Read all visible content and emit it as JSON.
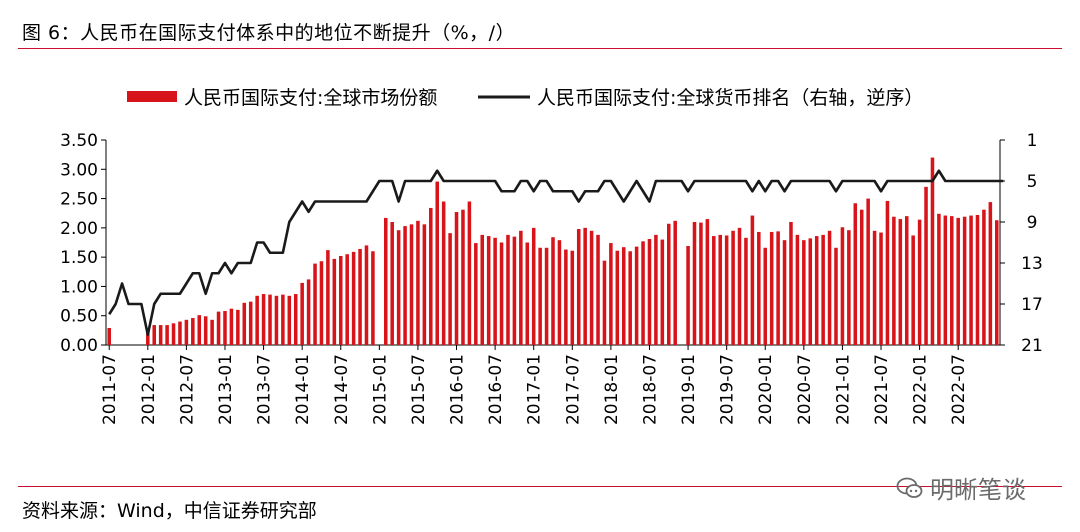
{
  "figure_title": "图 6：人民币在国际支付体系中的地位不断提升（%，/）",
  "source": "资料来源：Wind，中信证券研究部",
  "watermark": "明晰笔谈",
  "colors": {
    "bar": "#d7141a",
    "line": "#1a1a1a",
    "rule": "#c8102e"
  },
  "chart_data": {
    "type": "bar+line",
    "title": "",
    "legend_position": "top-center",
    "x_tick_labels": [
      "2011-07",
      "2012-01",
      "2012-07",
      "2013-01",
      "2013-07",
      "2014-01",
      "2014-07",
      "2015-01",
      "2015-07",
      "2016-01",
      "2016-07",
      "2017-01",
      "2017-07",
      "2018-01",
      "2018-07",
      "2019-01",
      "2019-07",
      "2020-01",
      "2020-07",
      "2021-01",
      "2021-07",
      "2022-01",
      "2022-07"
    ],
    "y_left": {
      "lim": [
        0,
        3.5
      ],
      "ticks": [
        "0.00",
        "0.50",
        "1.00",
        "1.50",
        "2.00",
        "2.50",
        "3.00",
        "3.50"
      ]
    },
    "y_right": {
      "lim": [
        1,
        21
      ],
      "reversed": true,
      "ticks": [
        "1",
        "5",
        "9",
        "13",
        "17",
        "21"
      ]
    },
    "series": [
      {
        "name": "人民币国际支付:全球市场份额",
        "type": "bar",
        "axis": "left",
        "start": "2011-07",
        "values": [
          0.29,
          null,
          null,
          null,
          null,
          null,
          0.28,
          0.34,
          0.34,
          0.34,
          0.37,
          0.4,
          0.43,
          0.46,
          0.51,
          0.49,
          0.43,
          0.57,
          0.58,
          0.62,
          0.6,
          0.72,
          0.74,
          0.84,
          0.87,
          0.86,
          0.84,
          0.86,
          0.84,
          0.87,
          1.06,
          1.12,
          1.39,
          1.43,
          1.62,
          1.47,
          1.52,
          1.55,
          1.59,
          1.64,
          1.7,
          1.6,
          null,
          2.17,
          2.1,
          1.96,
          2.03,
          2.06,
          2.12,
          2.06,
          2.34,
          2.79,
          2.45,
          1.91,
          2.27,
          2.31,
          2.45,
          1.74,
          1.88,
          1.86,
          1.83,
          1.75,
          1.88,
          1.85,
          1.95,
          1.75,
          2.0,
          1.66,
          1.66,
          1.84,
          1.79,
          1.63,
          1.61,
          1.98,
          2.0,
          1.95,
          1.88,
          1.44,
          1.74,
          1.61,
          1.67,
          1.6,
          1.68,
          1.77,
          1.81,
          1.88,
          1.8,
          2.07,
          2.12,
          null,
          1.69,
          2.1,
          2.09,
          2.15,
          1.86,
          1.88,
          1.87,
          1.95,
          2.0,
          1.83,
          2.21,
          1.93,
          1.66,
          1.93,
          1.94,
          1.79,
          2.1,
          1.88,
          1.79,
          1.82,
          1.86,
          1.88,
          1.95,
          1.66,
          2.01,
          1.96,
          2.42,
          2.31,
          2.5,
          1.95,
          1.92,
          2.46,
          2.19,
          2.15,
          2.2,
          1.87,
          2.14,
          2.7,
          3.2,
          2.24,
          2.21,
          2.2,
          2.17,
          2.19,
          2.21,
          2.22,
          2.31,
          2.44,
          2.13
        ]
      },
      {
        "name": "人民币国际支付:全球货币排名（右轴，逆序）",
        "type": "line",
        "axis": "right",
        "start": "2011-07",
        "values": [
          18,
          17,
          15,
          17,
          17,
          17,
          20,
          17,
          16,
          16,
          16,
          16,
          15,
          14,
          14,
          16,
          14,
          14,
          13,
          14,
          13,
          13,
          13,
          11,
          11,
          12,
          12,
          12,
          9,
          8,
          7,
          8,
          7,
          7,
          7,
          7,
          7,
          7,
          7,
          7,
          7,
          6,
          5,
          5,
          5,
          7,
          5,
          5,
          5,
          5,
          5,
          4,
          5,
          5,
          5,
          5,
          5,
          5,
          5,
          5,
          5,
          6,
          6,
          6,
          5,
          5,
          6,
          5,
          5,
          6,
          6,
          6,
          6,
          7,
          6,
          6,
          6,
          5,
          5,
          6,
          7,
          6,
          5,
          6,
          7,
          5,
          5,
          5,
          5,
          5,
          6,
          5,
          5,
          5,
          5,
          5,
          5,
          5,
          5,
          5,
          6,
          5,
          6,
          5,
          5,
          6,
          5,
          5,
          5,
          5,
          5,
          5,
          5,
          6,
          5,
          5,
          5,
          5,
          5,
          5,
          6,
          5,
          5,
          5,
          5,
          5,
          5,
          5,
          5,
          4,
          5,
          5,
          5,
          5,
          5,
          5,
          5,
          5,
          5,
          5
        ]
      }
    ]
  }
}
